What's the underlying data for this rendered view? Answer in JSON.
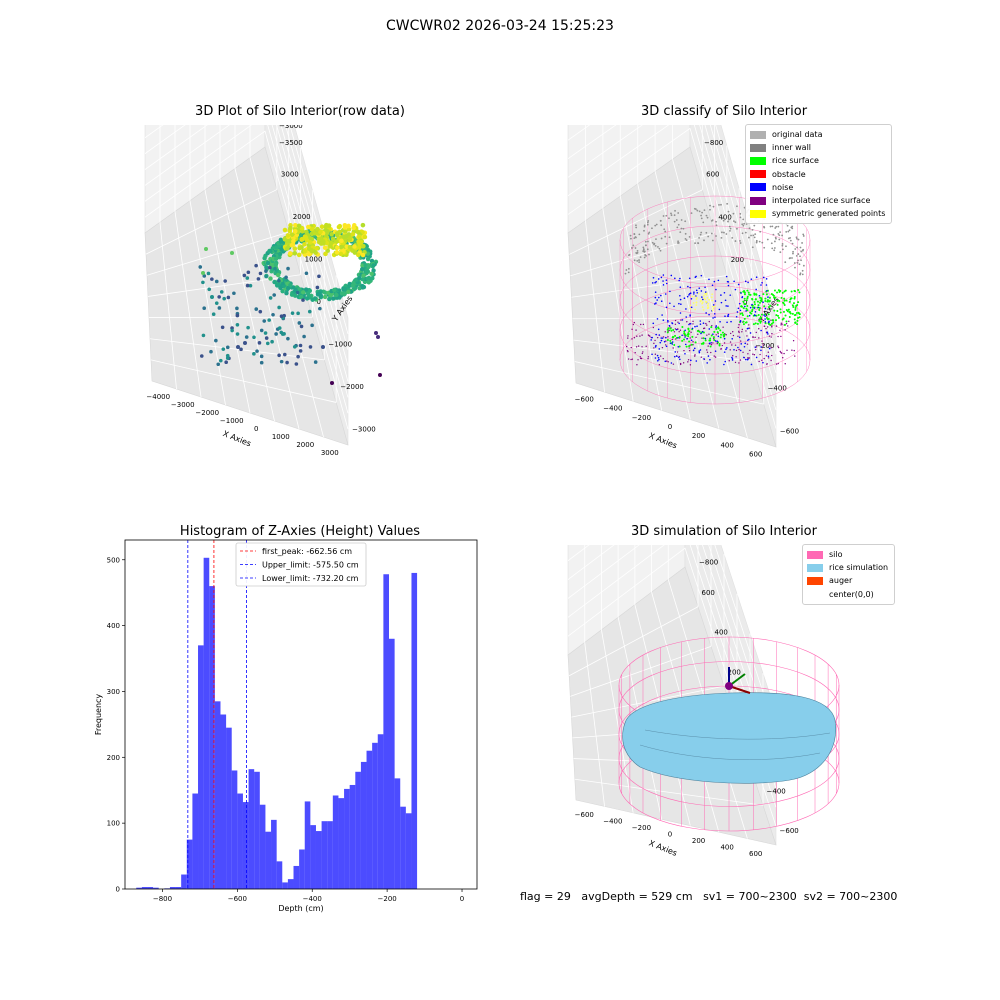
{
  "suptitle": "CWCWR02 2026-03-24 15:25:23",
  "panels": {
    "tl": {
      "title": "3D Plot of Silo Interior(row data)",
      "xlabel": "X Axies",
      "ylabel": "Y Axies",
      "zlabel": "Z Axies (Depth)",
      "xticks": [
        "−4000",
        "−3000",
        "−2000",
        "−1000",
        "0",
        "1000",
        "2000",
        "3000"
      ],
      "yticks": [
        "−3000",
        "−2000",
        "−1000",
        "0",
        "1000",
        "2000",
        "3000"
      ],
      "zticks": [
        "0",
        "−500",
        "−1000",
        "−1500",
        "−2000",
        "−2500",
        "−3000",
        "−3500"
      ]
    },
    "tr": {
      "title": "3D classify of Silo Interior",
      "xlabel": "X Axies",
      "ylabel": "Y Axies",
      "zlabel": "Z Axies (Depth)",
      "xticks": [
        "−600",
        "−400",
        "−200",
        "0",
        "200",
        "400",
        "600"
      ],
      "yticks": [
        "−600",
        "−400",
        "−200",
        "0",
        "200",
        "400",
        "600"
      ],
      "zticks": [
        "400",
        "200",
        "0",
        "−200",
        "−400",
        "−600",
        "−800"
      ],
      "legend": [
        {
          "label": "original data",
          "color": "#b0b0b0"
        },
        {
          "label": "inner wall",
          "color": "#808080"
        },
        {
          "label": "rice surface",
          "color": "#00ff00"
        },
        {
          "label": "obstacle",
          "color": "#ff0000"
        },
        {
          "label": "noise",
          "color": "#0000ff"
        },
        {
          "label": "interpolated rice surface",
          "color": "#800080"
        },
        {
          "label": "symmetric generated points",
          "color": "#ffff00"
        }
      ]
    },
    "br": {
      "title": "3D simulation of Silo Interior",
      "xlabel": "X Axies",
      "ylabel": "Y Axies",
      "zlabel": "Z Axies (Depth)",
      "xticks": [
        "−600",
        "−400",
        "−200",
        "0",
        "200",
        "400",
        "600"
      ],
      "yticks": [
        "−600",
        "−400",
        "−200",
        "0",
        "200",
        "400",
        "600"
      ],
      "zticks": [
        "400",
        "200",
        "0",
        "−200",
        "−400",
        "−600",
        "−800"
      ],
      "legend": [
        {
          "label": "silo",
          "color": "#ff69b4"
        },
        {
          "label": "rice simulation",
          "color": "#87ceeb"
        },
        {
          "label": "auger",
          "color": "#ff4500"
        },
        {
          "label": "center(0,0)",
          "color": ""
        }
      ]
    }
  },
  "status": {
    "flag": "flag = 29",
    "avg": "avgDepth = 529 cm",
    "sv1": "sv1 = 700~2300",
    "sv2": "sv2 = 700~2300"
  },
  "chart_data": {
    "type": "bar",
    "title": "Histogram of Z-Axies (Height) Values",
    "xlabel": "Depth (cm)",
    "ylabel": "Frequency",
    "xlim": [
      -900,
      40
    ],
    "ylim": [
      0,
      530
    ],
    "xticks": [
      -800,
      -600,
      -400,
      -200,
      0
    ],
    "yticks": [
      0,
      100,
      200,
      300,
      400,
      500
    ],
    "bin_start": -870,
    "bin_width": 15,
    "values": [
      2,
      3,
      3,
      2,
      0,
      1,
      3,
      3,
      22,
      75,
      145,
      370,
      503,
      460,
      285,
      265,
      245,
      180,
      145,
      132,
      182,
      178,
      128,
      87,
      105,
      42,
      10,
      15,
      35,
      60,
      133,
      97,
      88,
      103,
      103,
      142,
      138,
      152,
      158,
      178,
      193,
      210,
      222,
      235,
      478,
      380,
      168,
      125,
      115,
      480
    ],
    "color": "#0000ff",
    "annotations": [
      {
        "label": "first_peak: -662.56 cm",
        "x": -662.56,
        "color": "#ff0000"
      },
      {
        "label": "Upper_limit: -575.50 cm",
        "x": -575.5,
        "color": "#0000ff"
      },
      {
        "label": "Lower_limit: -732.20 cm",
        "x": -732.2,
        "color": "#0000ff"
      }
    ]
  }
}
